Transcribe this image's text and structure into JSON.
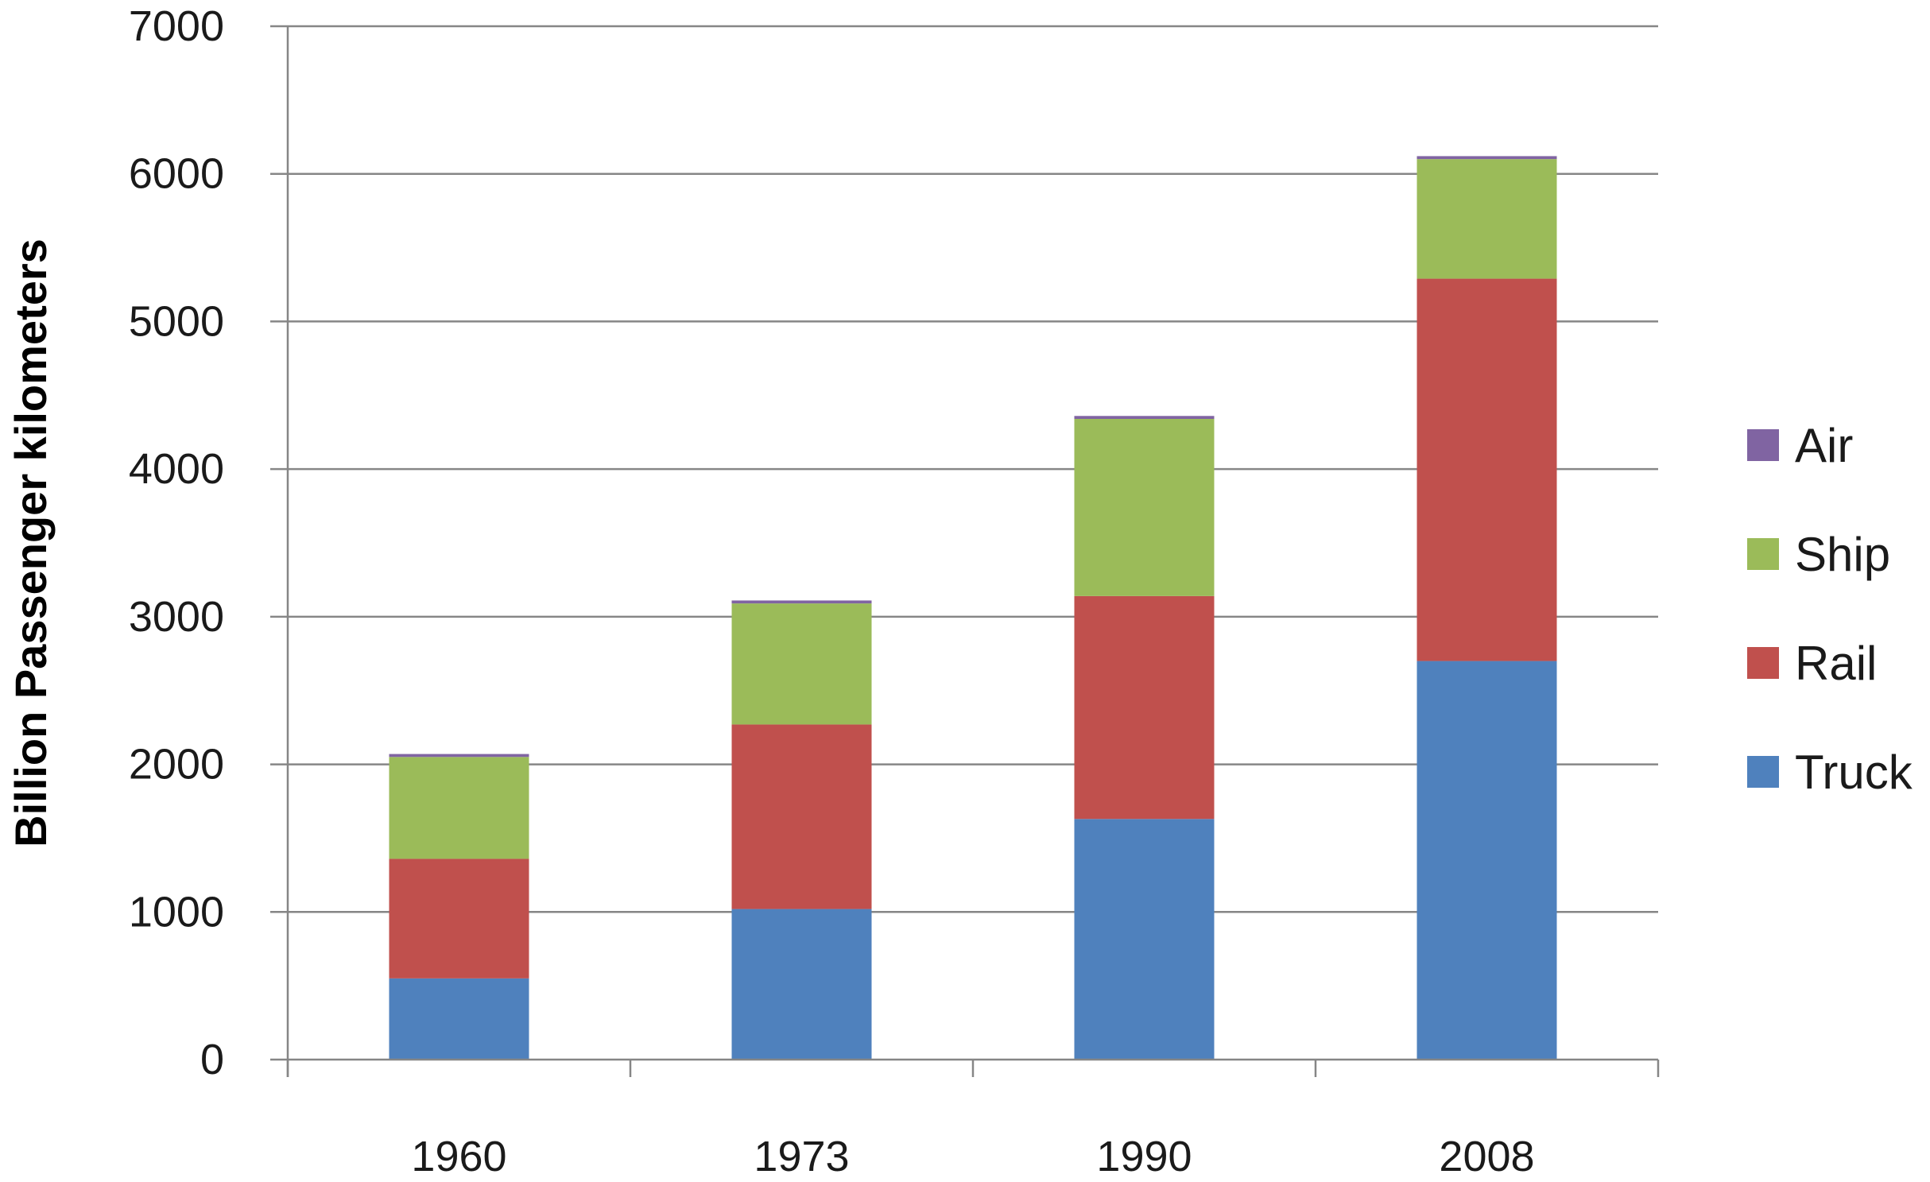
{
  "chart_data": {
    "type": "bar",
    "stacked": true,
    "title": "",
    "xlabel": "",
    "ylabel": "Billion Passenger kilometers",
    "categories": [
      "1960",
      "1973",
      "1990",
      "2008"
    ],
    "series": [
      {
        "name": "Truck",
        "color": "#4F81BD",
        "values": [
          550,
          1020,
          1630,
          2700
        ]
      },
      {
        "name": "Rail",
        "color": "#C0504D",
        "values": [
          810,
          1250,
          1510,
          2590
        ]
      },
      {
        "name": "Ship",
        "color": "#9BBB59",
        "values": [
          690,
          820,
          1200,
          810
        ]
      },
      {
        "name": "Air",
        "color": "#8064A2",
        "values": [
          20,
          20,
          20,
          20
        ]
      }
    ],
    "ylim": [
      0,
      7000
    ],
    "yticks": [
      "0",
      "1000",
      "2000",
      "3000",
      "4000",
      "5000",
      "6000",
      "7000"
    ],
    "grid": true,
    "legend_position": "right",
    "legend_order": [
      "Air",
      "Ship",
      "Rail",
      "Truck"
    ],
    "gridline_color": "#868686"
  }
}
